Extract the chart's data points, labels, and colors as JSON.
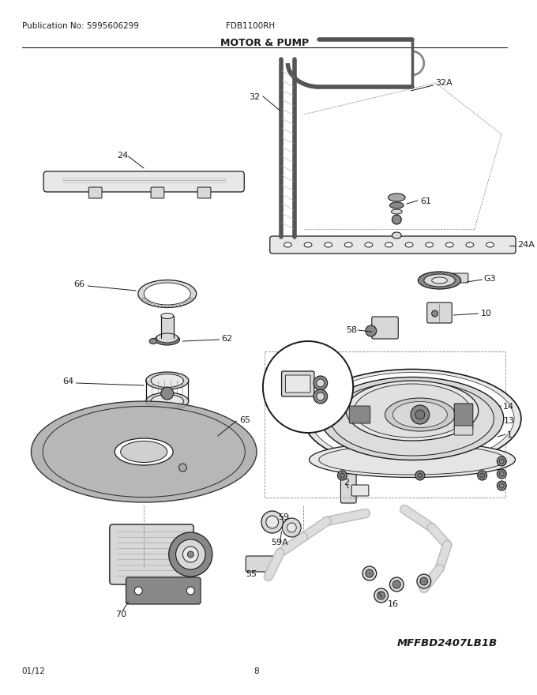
{
  "title": "MOTOR & PUMP",
  "pub_no": "Publication No: 5995606299",
  "model": "FDB1100RH",
  "date": "01/12",
  "page": "8",
  "watermark": "MFFBD2407LB1B",
  "bg_color": "#ffffff",
  "line_color": "#1a1a1a",
  "gray1": "#c8c8c8",
  "gray2": "#a8a8a8",
  "gray3": "#888888",
  "gray4": "#d8d8d8",
  "gray5": "#e8e8e8"
}
